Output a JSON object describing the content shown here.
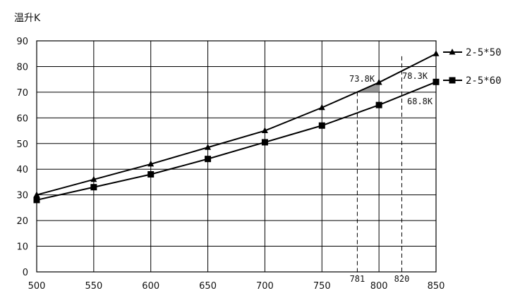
{
  "chart_data": {
    "type": "line",
    "title": "",
    "ylabel": "温升K",
    "xlabel": "",
    "x": [
      500,
      550,
      600,
      650,
      700,
      750,
      800,
      850
    ],
    "xticks": [
      "500",
      "550",
      "600",
      "650",
      "700",
      "750",
      "800",
      "850"
    ],
    "yticks": [
      "0",
      "10",
      "20",
      "30",
      "40",
      "50",
      "60",
      "70",
      "80",
      "90"
    ],
    "xlim": [
      500,
      850
    ],
    "ylim": [
      0,
      90
    ],
    "grid": true,
    "legend_position": "right",
    "series": [
      {
        "name": "2-5*50",
        "marker": "triangle",
        "values": [
          30,
          36,
          42,
          48.5,
          55,
          64,
          73.8,
          85
        ]
      },
      {
        "name": "2-5*60",
        "marker": "square",
        "values": [
          28,
          33,
          38,
          44,
          50.5,
          57,
          65,
          74
        ]
      }
    ],
    "reference_lines": [
      {
        "x": 781,
        "label": "781"
      },
      {
        "x": 820,
        "label": "820"
      }
    ],
    "annotations": [
      "73.8K",
      "78.3K",
      "68.8K"
    ]
  }
}
